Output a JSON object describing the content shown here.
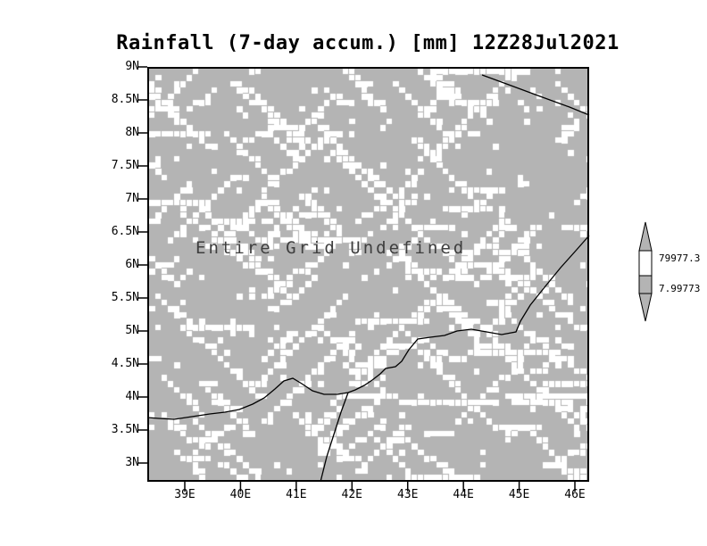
{
  "title": "Rainfall (7-day accum.) [mm] 12Z28Jul2021",
  "plot": {
    "undefined_text": "Entire Grid Undefined",
    "y_axis": {
      "labels": [
        "9N",
        "8.5N",
        "8N",
        "7.5N",
        "7N",
        "6.5N",
        "6N",
        "5.5N",
        "5N",
        "4.5N",
        "4N",
        "3.5N",
        "3N"
      ]
    },
    "x_axis": {
      "labels": [
        "39E",
        "40E",
        "41E",
        "42E",
        "43E",
        "44E",
        "45E",
        "46E"
      ]
    }
  },
  "colorbar": {
    "labels": [
      "79977.3",
      "7.99773"
    ]
  },
  "colors": {
    "grid_gray": "#b4b4b4",
    "undefined_white": "#ffffff",
    "line_black": "#000000"
  },
  "chart_data": {
    "type": "heatmap",
    "title": "Rainfall (7-day accum.) [mm] 12Z28Jul2021",
    "variable": "Rainfall (7-day accum.) [mm]",
    "valid_time": "12Z28Jul2021",
    "x_tick_labels": [
      "39E",
      "40E",
      "41E",
      "42E",
      "43E",
      "44E",
      "45E",
      "46E"
    ],
    "y_tick_labels": [
      "9N",
      "8.5N",
      "8N",
      "7.5N",
      "7N",
      "6.5N",
      "6N",
      "5.5N",
      "5N",
      "4.5N",
      "4N",
      "3.5N",
      "3N"
    ],
    "lon_range": [
      38.3,
      46.3
    ],
    "lat_range": [
      2.7,
      9.0
    ],
    "data_status": "Entire Grid Undefined",
    "values": "all grid points undefined (no data)",
    "colorbar_levels": [
      7.99773,
      79977.3
    ],
    "legend_position": "right",
    "grid": false
  }
}
